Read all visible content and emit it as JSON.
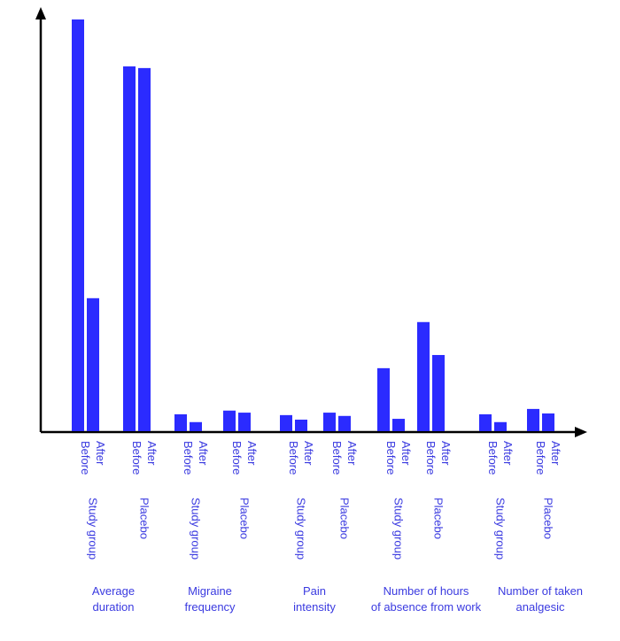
{
  "chart_data": {
    "type": "bar",
    "title": "",
    "xlabel": "",
    "ylabel": "",
    "ylim": [
      0,
      100
    ],
    "bar_color": "#2b2bff",
    "text_color": "#3a3ae0",
    "axis_color": "#000000",
    "grid": false,
    "groups": [
      {
        "label": [
          "Average",
          "duration"
        ],
        "subgroups": [
          {
            "name": "Study group",
            "bars": [
              {
                "label": "Before",
                "value": 100
              },
              {
                "label": "After",
                "value": 32.3
              }
            ]
          },
          {
            "name": "Placebo",
            "bars": [
              {
                "label": "Before",
                "value": 88.6
              },
              {
                "label": "After",
                "value": 88.2
              }
            ]
          }
        ]
      },
      {
        "label": [
          "Migraine",
          "frequency"
        ],
        "subgroups": [
          {
            "name": "Study group",
            "bars": [
              {
                "label": "Before",
                "value": 4.1
              },
              {
                "label": "After",
                "value": 2.2
              }
            ]
          },
          {
            "name": "Placebo",
            "bars": [
              {
                "label": "Before",
                "value": 5.0
              },
              {
                "label": "After",
                "value": 4.5
              }
            ]
          }
        ]
      },
      {
        "label": [
          "Pain",
          "intensity"
        ],
        "subgroups": [
          {
            "name": "Study group",
            "bars": [
              {
                "label": "Before",
                "value": 3.9
              },
              {
                "label": "After",
                "value": 2.8
              }
            ]
          },
          {
            "name": "Placebo",
            "bars": [
              {
                "label": "Before",
                "value": 4.5
              },
              {
                "label": "After",
                "value": 3.7
              }
            ]
          }
        ]
      },
      {
        "label": [
          "Number of hours",
          "of absence from work"
        ],
        "subgroups": [
          {
            "name": "Study group",
            "bars": [
              {
                "label": "Before",
                "value": 15.3
              },
              {
                "label": "After",
                "value": 3.0
              }
            ]
          },
          {
            "name": "Placebo",
            "bars": [
              {
                "label": "Before",
                "value": 26.5
              },
              {
                "label": "After",
                "value": 18.5
              }
            ]
          }
        ]
      },
      {
        "label": [
          "Number of taken",
          "analgesic"
        ],
        "subgroups": [
          {
            "name": "Study group",
            "bars": [
              {
                "label": "Before",
                "value": 4.1
              },
              {
                "label": "After",
                "value": 2.2
              }
            ]
          },
          {
            "name": "Placebo",
            "bars": [
              {
                "label": "Before",
                "value": 5.4
              },
              {
                "label": "After",
                "value": 4.3
              }
            ]
          }
        ]
      }
    ]
  }
}
